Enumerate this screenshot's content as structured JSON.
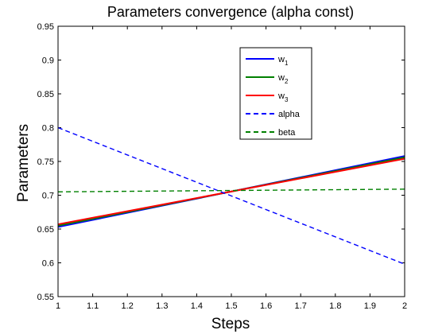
{
  "chart_data": {
    "type": "line",
    "title": "Parameters convergence (alpha const)",
    "xlabel": "Steps",
    "ylabel": "Parameters",
    "xlim": [
      1,
      2
    ],
    "ylim": [
      0.55,
      0.95
    ],
    "xticks": [
      "1",
      "1.1",
      "1.2",
      "1.3",
      "1.4",
      "1.5",
      "1.6",
      "1.7",
      "1.8",
      "1.9",
      "2"
    ],
    "yticks": [
      "0.55",
      "0.6",
      "0.65",
      "0.7",
      "0.75",
      "0.8",
      "0.85",
      "0.9",
      "0.95"
    ],
    "grid": false,
    "legend_position": "top-right",
    "series": [
      {
        "name": "w",
        "subscript": "1",
        "color": "#0000ff",
        "style": "solid",
        "x": [
          1,
          2
        ],
        "y": [
          0.653,
          0.758
        ]
      },
      {
        "name": "w",
        "subscript": "2",
        "color": "#008000",
        "style": "solid",
        "x": [
          1,
          2
        ],
        "y": [
          0.655,
          0.756
        ]
      },
      {
        "name": "w",
        "subscript": "3",
        "color": "#ff0000",
        "style": "solid",
        "x": [
          1,
          2
        ],
        "y": [
          0.657,
          0.754
        ]
      },
      {
        "name": "alpha",
        "color": "#0000ff",
        "style": "dashed",
        "x": [
          1,
          2
        ],
        "y": [
          0.8,
          0.598
        ]
      },
      {
        "name": "beta",
        "color": "#008000",
        "style": "dashed",
        "x": [
          1,
          2
        ],
        "y": [
          0.705,
          0.709
        ]
      }
    ]
  }
}
